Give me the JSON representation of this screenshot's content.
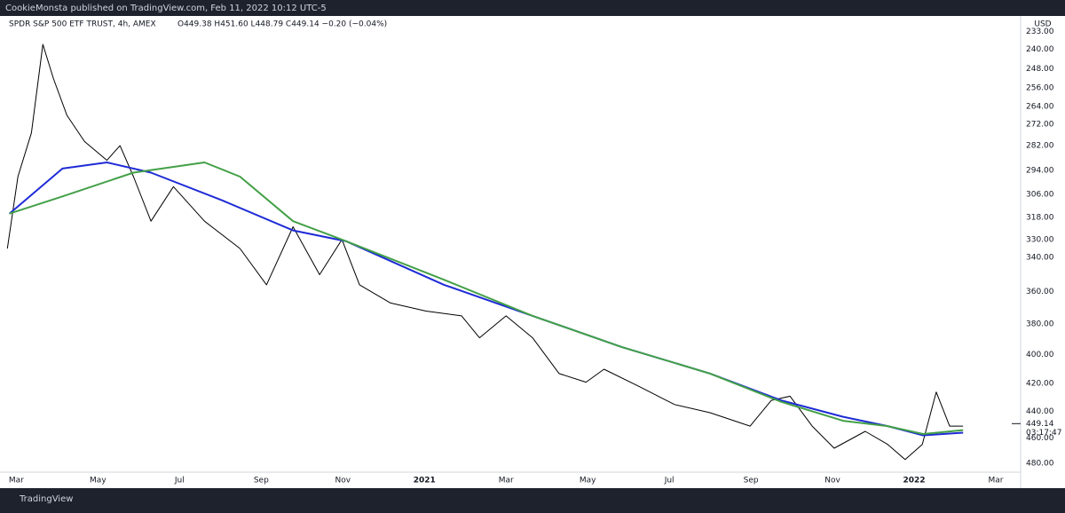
{
  "header": "CookieMonsta published on TradingView.com, Feb 11, 2022 10:12 UTC-5",
  "brand": "TradingView",
  "chart_data": {
    "type": "line",
    "title": "SPDR S&P 500 ETF TRUST, 4h, AMEX",
    "ohlc": "O449.38 H451.60 L448.79 C449.14 −0.20 (−0.04%)",
    "currency": "USD",
    "last_price": 449.14,
    "countdown": "03:17:47",
    "log": true,
    "invert": true,
    "grid": false,
    "xlim": [
      -0.4,
      24.5
    ],
    "xticks": [
      {
        "value": 0,
        "label": "Mar"
      },
      {
        "value": 2,
        "label": "May"
      },
      {
        "value": 4,
        "label": "Jul"
      },
      {
        "value": 6,
        "label": "Sep"
      },
      {
        "value": 8,
        "label": "Nov"
      },
      {
        "value": 10,
        "label": "2021"
      },
      {
        "value": 12,
        "label": "Mar"
      },
      {
        "value": 14,
        "label": "May"
      },
      {
        "value": 16,
        "label": "Jul"
      },
      {
        "value": 18,
        "label": "Sep"
      },
      {
        "value": 20,
        "label": "Nov"
      },
      {
        "value": 22,
        "label": "2022"
      },
      {
        "value": 24,
        "label": "Mar"
      }
    ],
    "ylim": [
      230,
      485
    ],
    "yticks": [
      {
        "value": 233,
        "label": "233.00"
      },
      {
        "value": 240,
        "label": "240.00"
      },
      {
        "value": 248,
        "label": "248.00"
      },
      {
        "value": 256,
        "label": "256.00"
      },
      {
        "value": 264,
        "label": "264.00"
      },
      {
        "value": 272,
        "label": "272.00"
      },
      {
        "value": 282,
        "label": "282.00"
      },
      {
        "value": 294,
        "label": "294.00"
      },
      {
        "value": 306,
        "label": "306.00"
      },
      {
        "value": 318,
        "label": "318.00"
      },
      {
        "value": 330,
        "label": "330.00"
      },
      {
        "value": 340,
        "label": "340.00"
      },
      {
        "value": 360,
        "label": "360.00"
      },
      {
        "value": 380,
        "label": "380.00"
      },
      {
        "value": 400,
        "label": "400.00"
      },
      {
        "value": 420,
        "label": "420.00"
      },
      {
        "value": 440,
        "label": "440.00"
      },
      {
        "value": 460,
        "label": "460.00"
      },
      {
        "value": 480,
        "label": "480.00"
      }
    ],
    "series": [
      {
        "color": "#000000",
        "x": [
          -0.22,
          0.04,
          0.37,
          0.65,
          0.91,
          1.24,
          1.67,
          2.22,
          2.54,
          2.87,
          3.3,
          3.85,
          4.61,
          5.48,
          6.13,
          6.78,
          7.43,
          7.98,
          8.41,
          9.17,
          10.04,
          10.91,
          11.35,
          12.0,
          12.65,
          13.3,
          13.96,
          14.4,
          15.26,
          16.13,
          17.0,
          17.98,
          18.5,
          18.96,
          19.5,
          20.04,
          20.8,
          21.35,
          21.78,
          22.2,
          22.54,
          22.87,
          23.2
        ],
        "values": [
          335,
          297,
          276,
          238,
          252,
          268,
          280,
          289,
          282,
          297,
          320,
          302,
          320,
          335,
          356,
          323,
          350,
          330,
          356,
          367,
          372,
          375,
          389,
          375,
          389,
          413,
          419,
          410,
          422,
          435,
          441,
          451,
          432,
          429,
          451,
          468,
          455,
          465,
          477,
          465,
          426,
          451,
          451
        ]
      },
      {
        "color": "#1e2bd6",
        "x": [
          -0.17,
          1.13,
          2.22,
          3.3,
          5.04,
          6.78,
          8.09,
          10.48,
          12.65,
          14.83,
          17.0,
          18.74,
          20.26,
          21.35,
          22.22,
          23.2
        ],
        "values": [
          316,
          293,
          290,
          295,
          309,
          325,
          331,
          356,
          375,
          395,
          413,
          432,
          444,
          451,
          458,
          456
        ]
      },
      {
        "color": "#43a047",
        "x": [
          -0.17,
          1.13,
          2.87,
          4.61,
          5.48,
          6.78,
          8.09,
          10.48,
          12.65,
          14.83,
          17.0,
          18.74,
          20.26,
          21.35,
          22.22,
          23.2
        ],
        "values": [
          316,
          307,
          295,
          290,
          297,
          320,
          331,
          353,
          375,
          395,
          413,
          433,
          447,
          451,
          457,
          454
        ]
      }
    ]
  }
}
